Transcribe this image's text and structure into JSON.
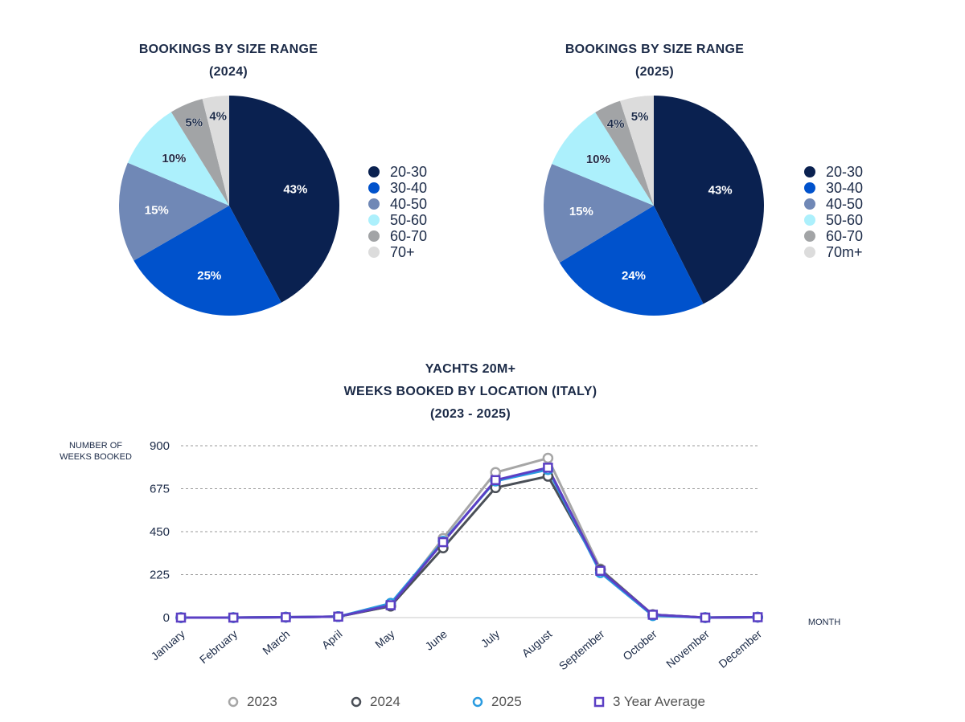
{
  "chart_data": [
    {
      "type": "pie",
      "title": "BOOKINGS BY SIZE RANGE",
      "subtitle": "(2024)",
      "categories": [
        "20-30",
        "30-40",
        "40-50",
        "50-60",
        "60-70",
        "70+"
      ],
      "values": [
        43,
        25,
        15,
        10,
        5,
        4
      ],
      "value_labels": [
        "43%",
        "25%",
        "15%",
        "10%",
        "5%",
        "4%"
      ],
      "colors": [
        "#0a2150",
        "#0052cc",
        "#7088b6",
        "#acf0fc",
        "#a2a4a6",
        "#dcdcdc"
      ],
      "legend": [
        "20-30",
        "30-40",
        "40-50",
        "50-60",
        "60-70",
        "70+"
      ]
    },
    {
      "type": "pie",
      "title": "BOOKINGS BY SIZE RANGE",
      "subtitle": "(2025)",
      "categories": [
        "20-30",
        "30-40",
        "40-50",
        "50-60",
        "60-70",
        "70m+"
      ],
      "values": [
        43,
        24,
        15,
        10,
        4,
        5
      ],
      "value_labels": [
        "43%",
        "24%",
        "15%",
        "10%",
        "4%",
        "5%"
      ],
      "colors": [
        "#0a2150",
        "#0052cc",
        "#7088b6",
        "#acf0fc",
        "#a2a4a6",
        "#dcdcdc"
      ],
      "legend": [
        "20-30",
        "30-40",
        "40-50",
        "50-60",
        "60-70",
        "70m+"
      ]
    },
    {
      "type": "line",
      "title_lines": [
        "YACHTS 20M+",
        "WEEKS BOOKED BY LOCATION (ITALY)",
        "(2023 - 2025)"
      ],
      "ylabel_lines": [
        "NUMBER OF",
        "WEEKS BOOKED"
      ],
      "xlabel": "MONTH",
      "ylim": [
        0,
        900
      ],
      "yticks": [
        0,
        225,
        450,
        675,
        900
      ],
      "ytick_labels": [
        "0",
        "225",
        "450",
        "675",
        "900"
      ],
      "categories": [
        "January",
        "February",
        "March",
        "April",
        "May",
        "June",
        "July",
        "August",
        "September",
        "October",
        "November",
        "December"
      ],
      "series": [
        {
          "name": "2023",
          "color": "#a6a6a6",
          "marker": "circle",
          "values": [
            0,
            0,
            2,
            5,
            60,
            415,
            760,
            835,
            255,
            15,
            0,
            2
          ]
        },
        {
          "name": "2024",
          "color": "#4a4f57",
          "marker": "circle",
          "values": [
            0,
            0,
            2,
            5,
            60,
            365,
            680,
            740,
            250,
            15,
            0,
            2
          ]
        },
        {
          "name": "2025",
          "color": "#2a9be0",
          "marker": "circle",
          "values": [
            0,
            0,
            2,
            5,
            75,
            400,
            715,
            775,
            235,
            10,
            0,
            2
          ]
        },
        {
          "name": "3 Year Average",
          "color": "#5b3fc4",
          "marker": "square",
          "values": [
            0,
            0,
            2,
            5,
            65,
            395,
            720,
            785,
            245,
            15,
            0,
            2
          ]
        }
      ]
    }
  ]
}
